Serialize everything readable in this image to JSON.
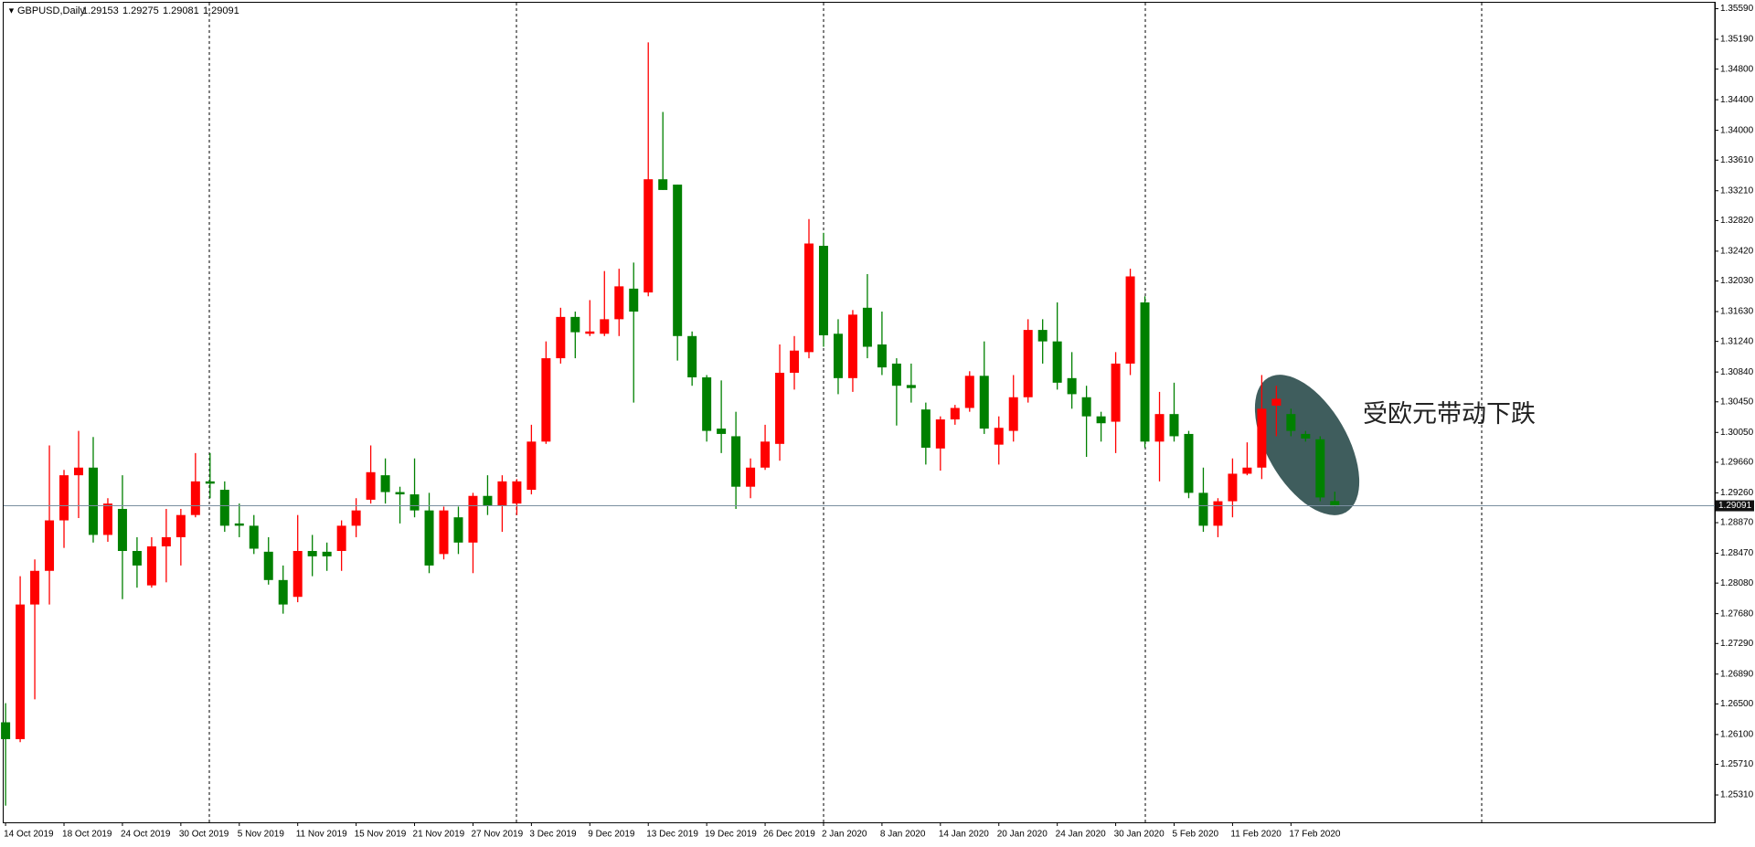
{
  "chart_data": {
    "type": "candlestick",
    "symbol": "GBPUSD,Daily",
    "annotation": "受欧元带动下跌",
    "up_color": "#ff0000",
    "down_color": "#008000",
    "categories": [
      "14 Oct 2019",
      null,
      null,
      null,
      "18 Oct 2019",
      null,
      null,
      null,
      "24 Oct 2019",
      null,
      null,
      null,
      "30 Oct 2019",
      null,
      null,
      null,
      "5 Nov 2019",
      null,
      null,
      null,
      "11 Nov 2019",
      null,
      null,
      null,
      "15 Nov 2019",
      null,
      null,
      null,
      "21 Nov 2019",
      null,
      null,
      null,
      "27 Nov 2019",
      null,
      null,
      null,
      "3 Dec 2019",
      null,
      null,
      null,
      "9 Dec 2019",
      null,
      null,
      null,
      "13 Dec 2019",
      null,
      null,
      null,
      "19 Dec 2019",
      null,
      null,
      null,
      "26 Dec 2019",
      null,
      null,
      null,
      "2 Jan 2020",
      null,
      null,
      null,
      "8 Jan 2020",
      null,
      null,
      null,
      "14 Jan 2020",
      null,
      null,
      null,
      "20 Jan 2020",
      null,
      null,
      null,
      "24 Jan 2020",
      null,
      null,
      null,
      "30 Jan 2020",
      null,
      null,
      null,
      "5 Feb 2020",
      null,
      null,
      null,
      "11 Feb 2020",
      null,
      null,
      null,
      "17 Feb 2020",
      null,
      null,
      null
    ],
    "open": [
      1.2626,
      1.2604,
      1.278,
      1.2824,
      1.289,
      1.2949,
      1.2959,
      1.2871,
      1.2905,
      1.285,
      1.2805,
      1.2856,
      1.2868,
      1.2897,
      1.2941,
      1.293,
      1.2886,
      1.2883,
      1.2849,
      1.2812,
      1.279,
      1.285,
      1.2849,
      1.285,
      1.2883,
      1.2917,
      1.2949,
      1.2927,
      1.2924,
      1.2903,
      1.2846,
      1.2894,
      1.2861,
      1.2922,
      1.2909,
      1.2912,
      1.293,
      1.2993,
      1.3102,
      1.3156,
      1.3134,
      1.3134,
      1.3153,
      1.3193,
      1.3188,
      1.3336,
      1.3329,
      1.3131,
      1.3077,
      1.301,
      1.3,
      1.2934,
      1.2959,
      1.299,
      1.3083,
      1.311,
      1.3249,
      1.3134,
      1.3076,
      1.3168,
      1.312,
      1.3095,
      1.3067,
      1.3035,
      1.2984,
      1.3022,
      1.3037,
      1.3079,
      1.2989,
      1.3007,
      1.3051,
      1.3139,
      1.3124,
      1.3076,
      1.3051,
      1.3026,
      1.3019,
      1.3095,
      1.3175,
      1.2993,
      1.3029,
      1.3003,
      1.2926,
      1.2883,
      1.2915,
      1.2951,
      1.2959,
      1.304,
      1.3029,
      1.3003,
      1.2996,
      1.29153
    ],
    "high": [
      1.2651,
      1.2817,
      1.2839,
      1.2988,
      1.2956,
      1.3007,
      1.2999,
      1.2919,
      1.2949,
      1.2868,
      1.2868,
      1.2905,
      1.2905,
      1.2978,
      1.2978,
      1.2941,
      1.2912,
      1.2897,
      1.2868,
      1.2831,
      1.2897,
      1.2871,
      1.2861,
      1.289,
      1.2919,
      1.2988,
      1.2971,
      1.2934,
      1.2971,
      1.2926,
      1.2908,
      1.2908,
      1.2926,
      1.2949,
      1.2949,
      1.2944,
      1.3015,
      1.3124,
      1.3168,
      1.3163,
      1.3178,
      1.3216,
      1.3219,
      1.3227,
      1.3515,
      1.3424,
      1.3329,
      1.3137,
      1.308,
      1.3073,
      1.3032,
      1.2971,
      1.3015,
      1.312,
      1.3131,
      1.3284,
      1.3266,
      1.3153,
      1.3165,
      1.3212,
      1.3163,
      1.3102,
      1.3095,
      1.3044,
      1.3026,
      1.3041,
      1.3085,
      1.3124,
      1.3026,
      1.308,
      1.3153,
      1.3153,
      1.3175,
      1.311,
      1.3066,
      1.3032,
      1.311,
      1.3219,
      1.3183,
      1.3058,
      1.307,
      1.3007,
      1.2959,
      1.2919,
      1.2971,
      1.2992,
      1.308,
      1.3066,
      1.3036,
      1.3007,
      1.3,
      1.29275
    ],
    "low": [
      1.2517,
      1.26,
      1.2656,
      1.278,
      1.2854,
      1.2893,
      1.2861,
      1.2862,
      1.2787,
      1.2802,
      1.2802,
      1.2809,
      1.2831,
      1.2894,
      1.2919,
      1.2875,
      1.2868,
      1.2846,
      1.2806,
      1.2768,
      1.2783,
      1.2817,
      1.2824,
      1.2824,
      1.2868,
      1.2912,
      1.2912,
      1.2886,
      1.2894,
      1.2821,
      1.2839,
      1.2846,
      1.2821,
      1.2897,
      1.2875,
      1.2897,
      1.2924,
      1.299,
      1.3095,
      1.3102,
      1.3131,
      1.3131,
      1.3131,
      1.3044,
      1.3183,
      1.3322,
      1.3099,
      1.3066,
      1.2993,
      1.2978,
      1.2905,
      1.2919,
      1.2956,
      1.2968,
      1.3061,
      1.3102,
      1.3117,
      1.3055,
      1.3058,
      1.3102,
      1.308,
      1.3014,
      1.3044,
      1.2963,
      1.2955,
      1.3015,
      1.3032,
      1.3003,
      1.2963,
      1.2993,
      1.3044,
      1.3095,
      1.3061,
      1.3036,
      1.2973,
      1.2993,
      1.2978,
      1.308,
      1.2985,
      1.2941,
      1.2993,
      1.2919,
      1.2875,
      1.2868,
      1.2894,
      1.2949,
      1.2944,
      1.3,
      1.3,
      1.2993,
      1.2915,
      1.29081
    ],
    "close": [
      1.2604,
      1.278,
      1.2824,
      1.289,
      1.2949,
      1.2959,
      1.2871,
      1.2912,
      1.285,
      1.2831,
      1.2856,
      1.2868,
      1.2897,
      1.2941,
      1.2938,
      1.2883,
      1.2883,
      1.2853,
      1.2812,
      1.278,
      1.285,
      1.2843,
      1.2843,
      1.2883,
      1.2903,
      1.2953,
      1.2927,
      1.2924,
      1.2903,
      1.2831,
      1.2903,
      1.2861,
      1.2922,
      1.2909,
      1.2941,
      1.2941,
      1.2993,
      1.3102,
      1.3156,
      1.3136,
      1.3137,
      1.3153,
      1.3196,
      1.3163,
      1.3336,
      1.3322,
      1.3131,
      1.3077,
      1.3007,
      1.3003,
      1.2934,
      1.2959,
      1.2993,
      1.3083,
      1.3112,
      1.3252,
      1.3132,
      1.3076,
      1.3159,
      1.3117,
      1.309,
      1.3066,
      1.3063,
      1.2985,
      1.3022,
      1.3037,
      1.3079,
      1.301,
      1.3011,
      1.3051,
      1.3139,
      1.3124,
      1.307,
      1.3055,
      1.3026,
      1.3017,
      1.3095,
      1.3209,
      1.2993,
      1.3029,
      1.3,
      1.2926,
      1.2883,
      1.2915,
      1.2951,
      1.2959,
      1.3036,
      1.3049,
      1.3007,
      1.2997,
      1.292,
      1.29091
    ],
    "ylim": [
      1.2494,
      1.3568
    ],
    "yticks": [
      {
        "value": 1.3559,
        "label": "1.35590"
      },
      {
        "value": 1.3519,
        "label": "1.35190"
      },
      {
        "value": 1.348,
        "label": "1.34800"
      },
      {
        "value": 1.344,
        "label": "1.34400"
      },
      {
        "value": 1.34,
        "label": "1.34000"
      },
      {
        "value": 1.3361,
        "label": "1.33610"
      },
      {
        "value": 1.3321,
        "label": "1.33210"
      },
      {
        "value": 1.3282,
        "label": "1.32820"
      },
      {
        "value": 1.3242,
        "label": "1.32420"
      },
      {
        "value": 1.3203,
        "label": "1.32030"
      },
      {
        "value": 1.3163,
        "label": "1.31630"
      },
      {
        "value": 1.3124,
        "label": "1.31240"
      },
      {
        "value": 1.3084,
        "label": "1.30840"
      },
      {
        "value": 1.3045,
        "label": "1.30450"
      },
      {
        "value": 1.3005,
        "label": "1.30050"
      },
      {
        "value": 1.2966,
        "label": "1.29660"
      },
      {
        "value": 1.2926,
        "label": "1.29260"
      },
      {
        "value": 1.2887,
        "label": "1.28870"
      },
      {
        "value": 1.2847,
        "label": "1.28470"
      },
      {
        "value": 1.2808,
        "label": "1.28080"
      },
      {
        "value": 1.2768,
        "label": "1.27680"
      },
      {
        "value": 1.2729,
        "label": "1.27290"
      },
      {
        "value": 1.2689,
        "label": "1.26890"
      },
      {
        "value": 1.265,
        "label": "1.26500"
      },
      {
        "value": 1.261,
        "label": "1.26100"
      },
      {
        "value": 1.2571,
        "label": "1.25710"
      },
      {
        "value": 1.2531,
        "label": "1.25310"
      }
    ]
  }
}
